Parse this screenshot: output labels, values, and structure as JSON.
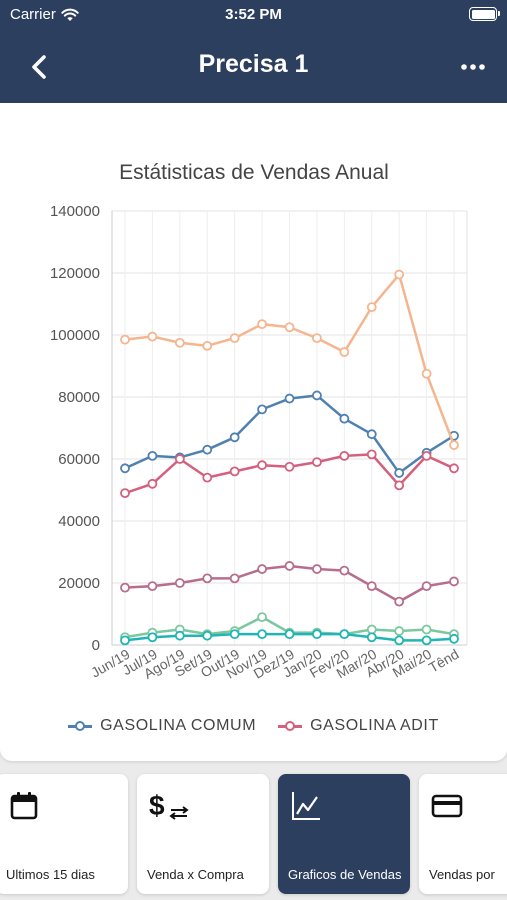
{
  "status_bar": {
    "carrier": "Carrier",
    "time": "3:52 PM"
  },
  "nav": {
    "title": "Precisa 1",
    "back_icon": "back-chevron-icon",
    "more_icon": "more-dots-icon"
  },
  "colors": {
    "nav_bg": "#2d3f5f",
    "active_tab": "#2d3f5f"
  },
  "chart_data": {
    "type": "line",
    "title": "Estátisticas de Vendas Anual",
    "categories": [
      "Jun/19",
      "Jul/19",
      "Ago/19",
      "Set/19",
      "Out/19",
      "Nov/19",
      "Dez/19",
      "Jan/20",
      "Fev/20",
      "Mar/20",
      "Abr/20",
      "Mai/20",
      "Tênd"
    ],
    "ylim": [
      0,
      140000
    ],
    "yticks": [
      0,
      20000,
      40000,
      60000,
      80000,
      100000,
      120000,
      140000
    ],
    "grid": true,
    "legend_position": "bottom",
    "series": [
      {
        "name": "GASOLINA COMUM",
        "color": "#4e80b0",
        "values": [
          57000,
          61000,
          60500,
          63000,
          67000,
          76000,
          79500,
          80500,
          73000,
          68000,
          55500,
          62000,
          67500
        ]
      },
      {
        "name": "GASOLINA ADIT",
        "color": "#d4607e",
        "values": [
          49000,
          52000,
          60000,
          54000,
          56000,
          58000,
          57500,
          59000,
          61000,
          61500,
          51500,
          61000,
          57000
        ]
      },
      {
        "color": "#f4b58f",
        "values": [
          98500,
          99500,
          97500,
          96500,
          99000,
          103500,
          102500,
          99000,
          94500,
          109000,
          119500,
          87500,
          64500
        ]
      },
      {
        "color": "#b76d8d",
        "values": [
          18500,
          19000,
          20000,
          21500,
          21500,
          24500,
          25500,
          24500,
          24000,
          19000,
          14000,
          19000,
          20500
        ]
      },
      {
        "color": "#7cc89e",
        "values": [
          2500,
          4000,
          5000,
          3500,
          4500,
          9000,
          4000,
          4000,
          3500,
          5000,
          4500,
          5000,
          3500
        ]
      },
      {
        "color": "#1fb5b5",
        "values": [
          1500,
          2500,
          3000,
          3000,
          3500,
          3500,
          3500,
          3500,
          3500,
          2500,
          1500,
          1500,
          2000
        ]
      }
    ]
  },
  "tabs": [
    {
      "label": "Ultimos 15 dias",
      "icon": "calendar-icon",
      "active": false
    },
    {
      "label": "Venda x Compra",
      "icon": "dollar-exchange-icon",
      "active": false
    },
    {
      "label": "Graficos de Vendas",
      "icon": "line-chart-icon",
      "active": true
    },
    {
      "label": "Vendas por",
      "icon": "credit-card-icon",
      "active": false
    }
  ]
}
